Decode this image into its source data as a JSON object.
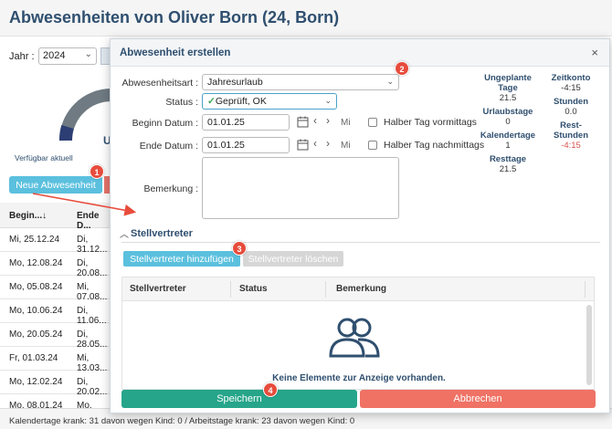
{
  "page": {
    "title": "Abwesenheiten von Oliver Born (24, Born)",
    "year_label": "Jahr :",
    "year_value": "2024",
    "gauge_letter": "U",
    "available_text": "Verfügbar aktuell",
    "new_button": "Neue Abwesenheit",
    "table_headers": [
      "Begin...↓",
      "Ende D..."
    ],
    "rows": [
      [
        "Mi, 25.12.24",
        "Di, 31.12..."
      ],
      [
        "Mo, 12.08.24",
        "Di, 20.08..."
      ],
      [
        "Mo, 05.08.24",
        "Mi, 07.08..."
      ],
      [
        "Mo, 10.06.24",
        "Di, 11.06..."
      ],
      [
        "Mo, 20.05.24",
        "Di, 28.05..."
      ],
      [
        "Fr, 01.03.24",
        "Mi, 13.03..."
      ],
      [
        "Mo, 12.02.24",
        "Di, 20.02..."
      ],
      [
        "Mo, 08.01.24",
        "Mo, 15.01..."
      ]
    ],
    "footer": "Kalendertage krank: 31 davon wegen Kind: 0 / Arbeitstage krank: 23 davon wegen Kind: 0"
  },
  "modal": {
    "title": "Abwesenheit erstellen",
    "close": "×",
    "type_label": "Abwesenheitsart :",
    "type_value": "Jahresurlaub",
    "status_label": "Status :",
    "status_value": "Geprüft, OK",
    "start_label": "Beginn Datum :",
    "start_value": "01.01.25",
    "start_day": "Mi",
    "end_label": "Ende Datum :",
    "end_value": "01.01.25",
    "end_day": "Mi",
    "half_morning": "Halber Tag vormittags",
    "half_afternoon": "Halber Tag nachmittags",
    "note_label": "Bemerkung :",
    "stats_left": [
      {
        "label": "Ungeplante Tage",
        "value": "21.5"
      },
      {
        "label": "Urlaubstage",
        "value": "0"
      },
      {
        "label": "Kalendertage",
        "value": "1"
      },
      {
        "label": "Resttage",
        "value": "21.5"
      }
    ],
    "stats_right": [
      {
        "label": "Zeitkonto",
        "value": "-4:15"
      },
      {
        "label": "Stunden",
        "value": "0.0"
      },
      {
        "label": "Rest-Stunden",
        "value": "-4:15"
      }
    ],
    "section_title": "Stellvertreter",
    "add_button": "Stellvertreter hinzufügen",
    "delete_button": "Stellvertreter löschen",
    "grid_headers": [
      "Stellvertreter",
      "Status",
      "Bemerkung"
    ],
    "empty_text": "Keine Elemente zur Anzeige vorhanden.",
    "save_button": "Speichern",
    "cancel_button": "Abbrechen"
  },
  "badges": [
    "1",
    "2",
    "3",
    "4"
  ],
  "colors": {
    "accent": "#5bc0de",
    "title": "#2f4f6f",
    "save": "#26a58a",
    "cancel": "#ef7265",
    "badge": "#e74c3c"
  }
}
